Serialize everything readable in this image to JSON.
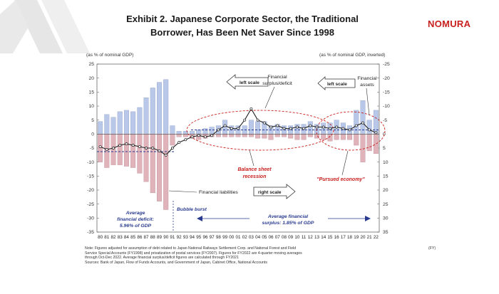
{
  "header": {
    "title_line1": "Exhibit 2. Japanese Corporate Sector, the Traditional",
    "title_line2": "Borrower, Has Been Net Saver Since 1998",
    "logo": "NOMURA"
  },
  "chart_data": {
    "type": "bar",
    "left_axis_label": "(as % of nominal GDP)",
    "right_axis_label": "(as % of nominal GDP, inverted)",
    "left_ticks": [
      "25",
      "20",
      "15",
      "10",
      "5",
      "0",
      "-5",
      "-10",
      "-15",
      "-20",
      "-25",
      "-30",
      "-35"
    ],
    "right_ticks": [
      "-25",
      "-20",
      "-15",
      "-10",
      "-5",
      "0",
      "5",
      "10",
      "15",
      "20",
      "25",
      "30",
      "35"
    ],
    "ylim": [
      -35,
      25
    ],
    "categories": [
      "80",
      "81",
      "82",
      "83",
      "84",
      "85",
      "86",
      "87",
      "88",
      "89",
      "90",
      "91",
      "92",
      "93",
      "94",
      "95",
      "96",
      "97",
      "98",
      "99",
      "00",
      "01",
      "02",
      "03",
      "04",
      "05",
      "06",
      "07",
      "08",
      "09",
      "10",
      "11",
      "12",
      "13",
      "14",
      "15",
      "16",
      "17",
      "18",
      "19",
      "20",
      "21",
      "22"
    ],
    "series": [
      {
        "name": "Financial assets",
        "color": "#b9c8e8",
        "values": [
          4.5,
          7,
          6,
          8,
          8.5,
          8,
          9.5,
          13,
          16.5,
          18.5,
          19.5,
          3,
          1,
          1,
          1,
          1.5,
          2,
          2.5,
          3,
          5,
          3,
          3,
          3,
          5,
          4.5,
          4.5,
          3,
          3.5,
          3,
          3,
          3.5,
          3.5,
          4.5,
          3.5,
          4,
          4,
          5,
          4,
          3,
          8.5,
          12,
          5,
          8.5
        ]
      },
      {
        "name": "Financial liabilities",
        "color": "#e0b3bb",
        "values": [
          -10,
          -12,
          -11,
          -11,
          -11.5,
          -12,
          -14,
          -17,
          -21,
          -24,
          -27,
          -4,
          -1,
          -1,
          -1.5,
          -2,
          -1.5,
          -1,
          -1,
          -1,
          -1,
          -1,
          -1,
          -1,
          -1.5,
          -1.5,
          -2,
          -1,
          -1,
          -1.5,
          -2,
          -2,
          -1,
          -1.5,
          -2,
          -2.5,
          -2,
          -2,
          -2,
          -4,
          -10,
          -6,
          -7
        ]
      },
      {
        "name": "Financial surplus/deficit",
        "color": "#222222",
        "values": [
          -4.5,
          -5.5,
          -5,
          -4,
          -3.5,
          -4,
          -4.5,
          -5,
          -5,
          -6,
          -7.5,
          -5,
          -3,
          -2,
          -1,
          -0.5,
          -1,
          -0.5,
          1.5,
          3,
          2,
          2,
          5,
          9,
          5,
          4,
          2.5,
          3,
          2,
          2,
          2.5,
          2,
          3,
          2.5,
          2.5,
          2,
          2.5,
          2,
          1.5,
          3,
          4,
          1.5,
          0.5
        ]
      }
    ],
    "annotations": {
      "financial_surplus_deficit": "Financial surplus/deficit",
      "financial_assets_l1": "Financial",
      "financial_assets_l2": "assets",
      "financial_liabilities": "Financial liabilities",
      "left_scale": "left scale",
      "left_scale_2": "left scale",
      "right_scale": "right scale",
      "balance_sheet_l1": "Balance sheet",
      "balance_sheet_l2": "recession",
      "pursued_economy": "\"Pursued economy\"",
      "bubble_burst": "Bubble burst",
      "avg_deficit_l1": "Average",
      "avg_deficit_l2": "financial deficit:",
      "avg_deficit_l3": "5.96% of GDP",
      "avg_surplus_l1": "Average financial",
      "avg_surplus_l2": "surplus: 1.85% of GDP"
    },
    "colors": {
      "positive_bars": "#b9c8e8",
      "negative_bars": "#e0b3bb",
      "line": "#222222",
      "red_text": "#c8201e",
      "blue_text": "#2a3b8f"
    }
  },
  "footnote": {
    "line1": "Note: Figures adjusted for assumption of debt related to Japan National Railways Settlement Corp. and National Forest and Field",
    "fy": "(FY)",
    "line2": "Service Special Accounts (FY1998) and privatization of postal services (FY2007). Figures for FY2022 are 4-quarter moving averages",
    "line3": "through Oct-Dec 2022. Average financial surplus/deficit figures are calculated through FY2021",
    "line4": "Sources: Bank of Japan, Flow of Funds Accounts, and Government of Japan, Cabinet Office, National Accounts"
  }
}
